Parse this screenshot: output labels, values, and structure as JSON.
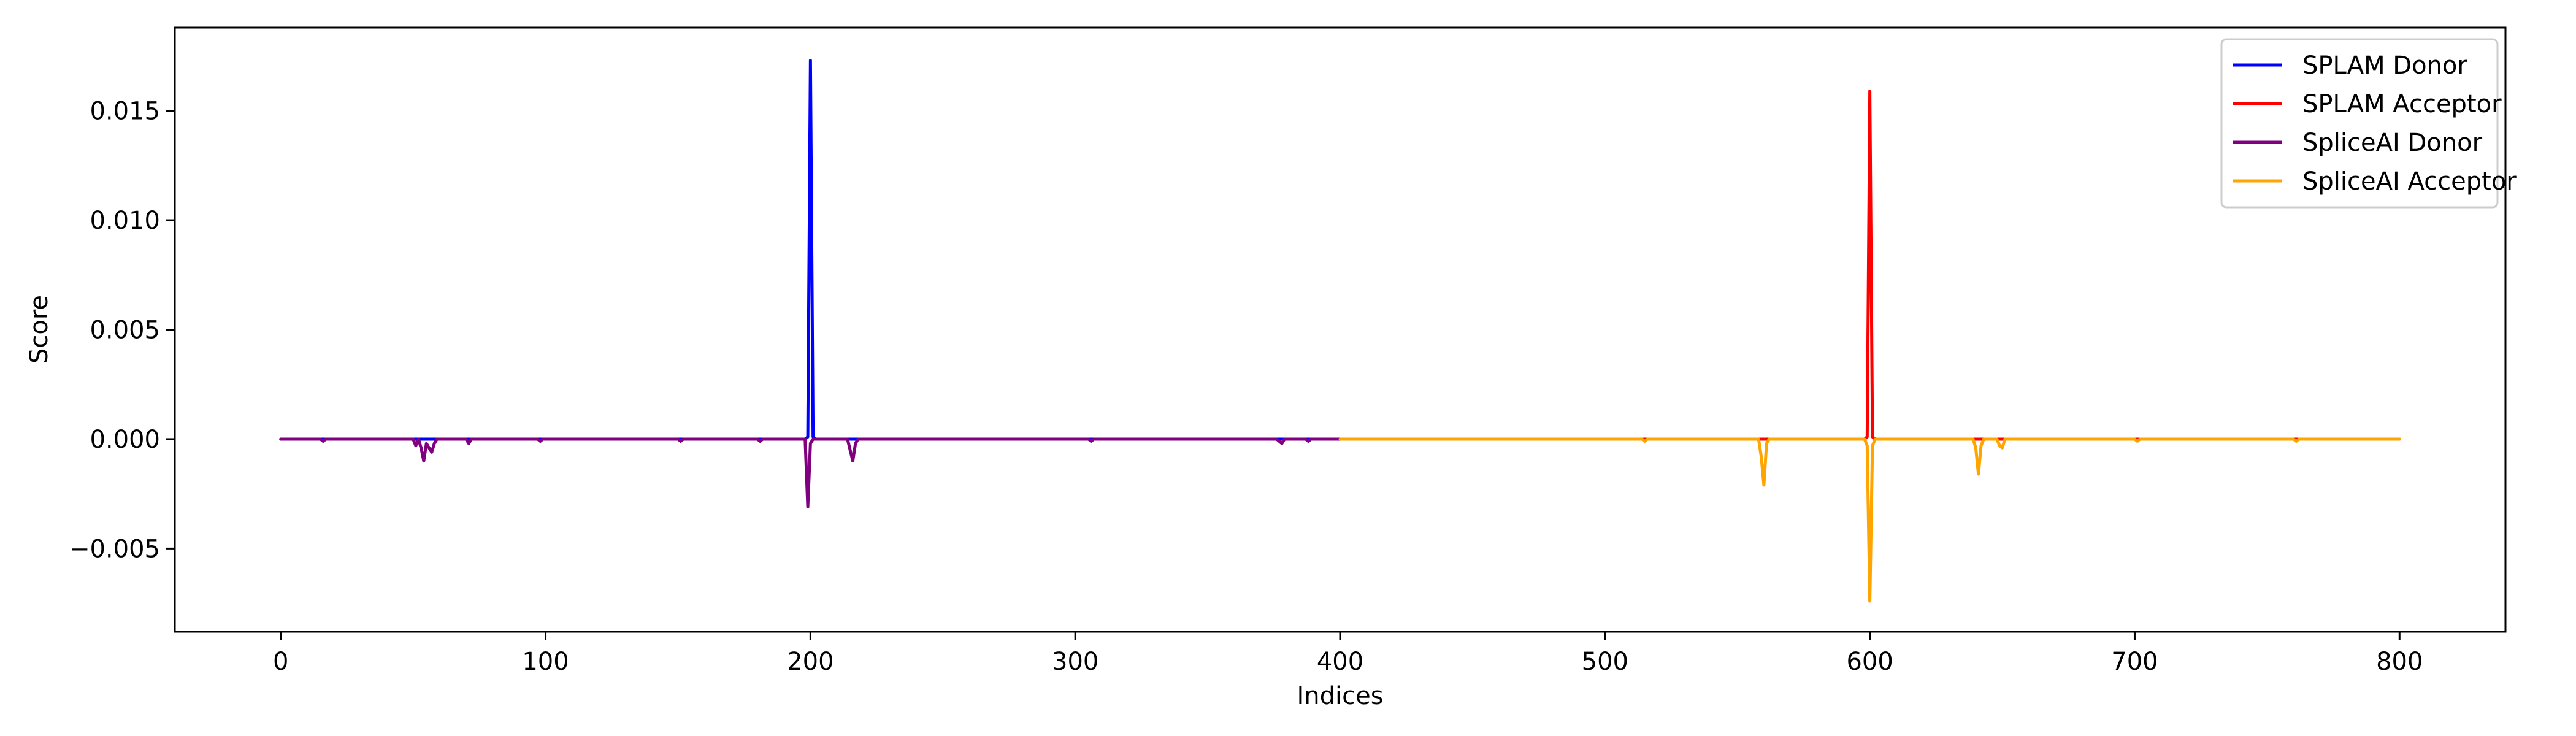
{
  "chart_data": {
    "type": "line",
    "title": "",
    "xlabel": "Indices",
    "ylabel": "Score",
    "xlim": [
      -40,
      840
    ],
    "ylim": [
      -0.0088,
      0.0188
    ],
    "xticks": [
      0,
      100,
      200,
      300,
      400,
      500,
      600,
      700,
      800
    ],
    "xtick_labels": [
      "0",
      "100",
      "200",
      "300",
      "400",
      "500",
      "600",
      "700",
      "800"
    ],
    "yticks": [
      -0.005,
      0.0,
      0.005,
      0.01,
      0.015
    ],
    "ytick_labels": [
      "−0.005",
      "0.000",
      "0.005",
      "0.010",
      "0.015"
    ],
    "grid": false,
    "legend": "top-right",
    "series": [
      {
        "name": "SPLAM Donor",
        "color": "#0000ff",
        "points": [
          [
            0,
            0
          ],
          [
            198,
            0
          ],
          [
            199,
            0.0001
          ],
          [
            200,
            0.0173
          ],
          [
            201,
            0.0001
          ],
          [
            202,
            0
          ],
          [
            400,
            0
          ]
        ]
      },
      {
        "name": "SPLAM Acceptor",
        "color": "#ff0000",
        "points": [
          [
            400,
            0
          ],
          [
            598,
            0
          ],
          [
            599,
            0.0001
          ],
          [
            600,
            0.0159
          ],
          [
            601,
            0.0001
          ],
          [
            602,
            0
          ],
          [
            800,
            0
          ]
        ]
      },
      {
        "name": "SpliceAI Donor",
        "color": "#800080",
        "points": [
          [
            0,
            0
          ],
          [
            15,
            0
          ],
          [
            16,
            -0.0001
          ],
          [
            17,
            0
          ],
          [
            50,
            0
          ],
          [
            51,
            -0.0003
          ],
          [
            52,
            0
          ],
          [
            53,
            -0.0004
          ],
          [
            54,
            -0.001
          ],
          [
            55,
            -0.0002
          ],
          [
            56,
            -0.0004
          ],
          [
            57,
            -0.0006
          ],
          [
            58,
            -0.0002
          ],
          [
            59,
            0
          ],
          [
            70,
            0
          ],
          [
            71,
            -0.0002
          ],
          [
            72,
            0
          ],
          [
            97,
            0
          ],
          [
            98,
            -0.0001
          ],
          [
            99,
            0
          ],
          [
            150,
            0
          ],
          [
            151,
            -0.0001
          ],
          [
            152,
            0
          ],
          [
            180,
            0
          ],
          [
            181,
            -0.0001
          ],
          [
            182,
            0
          ],
          [
            198,
            0
          ],
          [
            199,
            -0.0031
          ],
          [
            200,
            -0.0002
          ],
          [
            201,
            0
          ],
          [
            214,
            0
          ],
          [
            215,
            -0.0005
          ],
          [
            216,
            -0.001
          ],
          [
            217,
            -0.0002
          ],
          [
            218,
            0
          ],
          [
            305,
            0
          ],
          [
            306,
            -0.0001
          ],
          [
            307,
            0
          ],
          [
            376,
            0
          ],
          [
            377,
            -0.0001
          ],
          [
            378,
            -0.0002
          ],
          [
            379,
            0
          ],
          [
            387,
            0
          ],
          [
            388,
            -0.0001
          ],
          [
            389,
            0
          ],
          [
            400,
            0
          ]
        ]
      },
      {
        "name": "SpliceAI Acceptor",
        "color": "#ffa500",
        "points": [
          [
            400,
            0
          ],
          [
            514,
            0
          ],
          [
            515,
            -0.0001
          ],
          [
            516,
            0
          ],
          [
            558,
            0
          ],
          [
            559,
            -0.0008
          ],
          [
            560,
            -0.0021
          ],
          [
            561,
            -0.0002
          ],
          [
            562,
            0
          ],
          [
            598,
            0
          ],
          [
            599,
            -0.0003
          ],
          [
            600,
            -0.0074
          ],
          [
            601,
            -0.0003
          ],
          [
            602,
            0
          ],
          [
            639,
            0
          ],
          [
            640,
            -0.0004
          ],
          [
            641,
            -0.0016
          ],
          [
            642,
            -0.0003
          ],
          [
            643,
            0
          ],
          [
            648,
            0
          ],
          [
            649,
            -0.0003
          ],
          [
            650,
            -0.0004
          ],
          [
            651,
            0
          ],
          [
            700,
            0
          ],
          [
            701,
            -0.0001
          ],
          [
            702,
            0
          ],
          [
            760,
            0
          ],
          [
            761,
            -0.0001
          ],
          [
            762,
            0
          ],
          [
            800,
            0
          ]
        ]
      }
    ]
  }
}
